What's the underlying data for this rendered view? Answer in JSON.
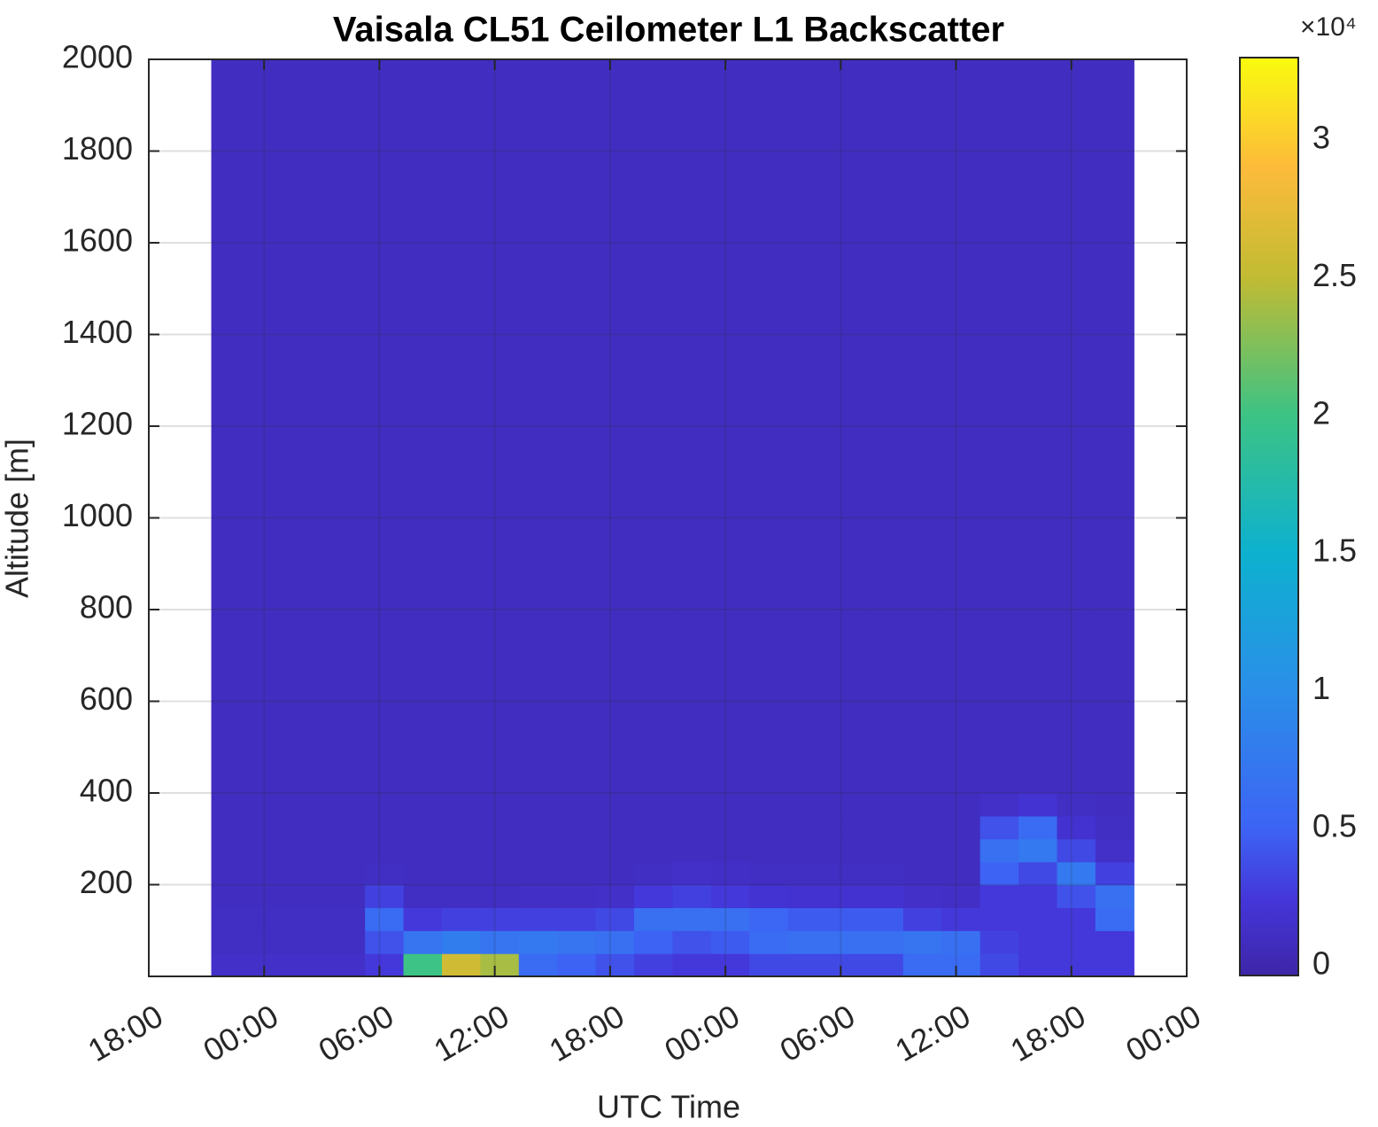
{
  "chart_data": {
    "type": "heatmap",
    "title": "Vaisala CL51 Ceilometer L1 Backscatter",
    "xlabel": "UTC Time",
    "ylabel": "Altitude [m]",
    "colormap": "parula",
    "grid": true,
    "xlim": [
      0,
      54
    ],
    "xticks": [
      {
        "value": 0,
        "label": "18:00"
      },
      {
        "value": 6,
        "label": "00:00"
      },
      {
        "value": 12,
        "label": "06:00"
      },
      {
        "value": 18,
        "label": "12:00"
      },
      {
        "value": 24,
        "label": "18:00"
      },
      {
        "value": 30,
        "label": "00:00"
      },
      {
        "value": 36,
        "label": "06:00"
      },
      {
        "value": 42,
        "label": "12:00"
      },
      {
        "value": 48,
        "label": "18:00"
      },
      {
        "value": 54,
        "label": "00:00"
      }
    ],
    "ylim": [
      0,
      2000
    ],
    "yticks": [
      200,
      400,
      600,
      800,
      1000,
      1200,
      1400,
      1600,
      1800,
      2000
    ],
    "x_bins": [
      3.25,
      5.25,
      7.25,
      9.25,
      11.25,
      13.25,
      15.25,
      17.25,
      19.25,
      21.25,
      23.25,
      25.25,
      27.25,
      29.25,
      31.25,
      33.25,
      35.25,
      37.25,
      39.25,
      41.25,
      43.25,
      45.25,
      47.25,
      49.25,
      51.25
    ],
    "y_bins": [
      0,
      50,
      100,
      150,
      200,
      250,
      300,
      350,
      400,
      2000
    ],
    "z": [
      [
        1500,
        1200,
        1100,
        1000,
        1000,
        1000,
        1000,
        1000,
        1000
      ],
      [
        1500,
        1200,
        1100,
        1000,
        1000,
        1000,
        1000,
        1000,
        1000
      ],
      [
        1500,
        1200,
        1100,
        1000,
        1000,
        1000,
        1000,
        1000,
        1000
      ],
      [
        1500,
        1200,
        1100,
        1000,
        1000,
        1000,
        1000,
        1000,
        1000
      ],
      [
        2500,
        4000,
        6000,
        3000,
        1200,
        1000,
        1000,
        1000,
        1000
      ],
      [
        20000,
        7000,
        2500,
        1200,
        1000,
        1000,
        1000,
        1000,
        1000
      ],
      [
        26000,
        8000,
        3000,
        1200,
        1000,
        1000,
        1000,
        1000,
        1000
      ],
      [
        24000,
        7000,
        3000,
        1200,
        1000,
        1000,
        1000,
        1000,
        1000
      ],
      [
        6000,
        7500,
        3000,
        1300,
        1000,
        1000,
        1000,
        1000,
        1000
      ],
      [
        5000,
        7000,
        3000,
        1300,
        1000,
        1000,
        1000,
        1000,
        1000
      ],
      [
        4000,
        6500,
        3500,
        1500,
        1000,
        1000,
        1000,
        1000,
        1000
      ],
      [
        3000,
        5000,
        6500,
        2500,
        1200,
        1000,
        1000,
        1000,
        1000
      ],
      [
        2500,
        4000,
        6500,
        3000,
        1500,
        1000,
        1000,
        1000,
        1000
      ],
      [
        2500,
        4500,
        6500,
        2500,
        1300,
        1000,
        1000,
        1000,
        1000
      ],
      [
        3500,
        6000,
        5500,
        2000,
        1100,
        1000,
        1000,
        1000,
        1000
      ],
      [
        3500,
        6500,
        4500,
        1800,
        1100,
        1000,
        1000,
        1000,
        1000
      ],
      [
        3500,
        6500,
        4500,
        1800,
        1100,
        1000,
        1000,
        1000,
        1000
      ],
      [
        3500,
        6500,
        4500,
        1800,
        1100,
        1000,
        1000,
        1000,
        1000
      ],
      [
        6000,
        7000,
        3000,
        1500,
        1000,
        1000,
        1000,
        1000,
        1000
      ],
      [
        6000,
        6500,
        2500,
        1300,
        1000,
        1000,
        1000,
        1000,
        1000
      ],
      [
        3500,
        3000,
        2500,
        2500,
        5000,
        6500,
        4000,
        1500,
        1000
      ],
      [
        2500,
        2500,
        2500,
        2500,
        3500,
        7500,
        6000,
        2000,
        1000
      ],
      [
        2500,
        2500,
        2500,
        4000,
        7500,
        3500,
        1800,
        1200,
        1000
      ],
      [
        2500,
        2500,
        6000,
        6500,
        3000,
        1500,
        1200,
        1000,
        1000
      ]
    ],
    "clim": [
      -350,
      33000
    ],
    "cticks": [
      {
        "value": 0,
        "label": "0"
      },
      {
        "value": 5000,
        "label": "0.5"
      },
      {
        "value": 10000,
        "label": "1"
      },
      {
        "value": 15000,
        "label": "1.5"
      },
      {
        "value": 20000,
        "label": "2"
      },
      {
        "value": 25000,
        "label": "2.5"
      },
      {
        "value": 30000,
        "label": "3"
      }
    ],
    "colorbar_exponent_label": "×10⁴"
  }
}
